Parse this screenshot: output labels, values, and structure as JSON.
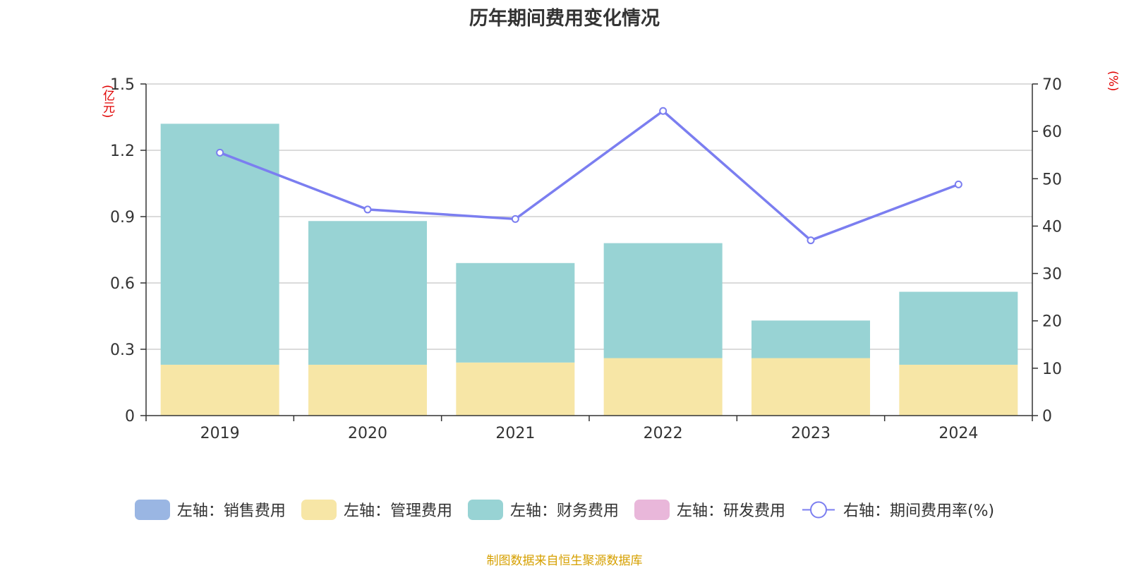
{
  "title": "历年期间费用变化情况",
  "unit_left": "(亿元)",
  "unit_right": "(%)",
  "source": "制图数据来自恒生聚源数据库",
  "legend": [
    {
      "label": "左轴：销售费用",
      "color": "#9ab6e3"
    },
    {
      "label": "左轴：管理费用",
      "color": "#f7e6a6"
    },
    {
      "label": "左轴：财务费用",
      "color": "#98d3d4"
    },
    {
      "label": "左轴：研发费用",
      "color": "#e9b7da"
    },
    {
      "label": "右轴：期间费用率(%)",
      "color": "#7b7ef0"
    }
  ],
  "chart_data": {
    "type": "bar",
    "stacked": true,
    "title": "历年期间费用变化情况",
    "categories": [
      "2019",
      "2020",
      "2021",
      "2022",
      "2023",
      "2024"
    ],
    "left_axis": {
      "unit": "(亿元)",
      "ylim": [
        0,
        1.5
      ],
      "ticks": [
        "0",
        "0.3",
        "0.6",
        "0.9",
        "1.2",
        "1.5"
      ]
    },
    "right_axis": {
      "unit": "(%)",
      "ylim": [
        0,
        70
      ],
      "ticks": [
        "0",
        "10",
        "20",
        "30",
        "40",
        "50",
        "60",
        "70"
      ]
    },
    "series": [
      {
        "name": "左轴：销售费用",
        "axis": "left",
        "type": "bar",
        "color": "#9ab6e3",
        "values": [
          0,
          0,
          0,
          0,
          0,
          0
        ]
      },
      {
        "name": "左轴：管理费用",
        "axis": "left",
        "type": "bar",
        "color": "#f7e6a6",
        "values": [
          0.23,
          0.23,
          0.24,
          0.26,
          0.26,
          0.23
        ]
      },
      {
        "name": "左轴：财务费用",
        "axis": "left",
        "type": "bar",
        "color": "#98d3d4",
        "values": [
          1.09,
          0.65,
          0.45,
          0.52,
          0.17,
          0.33
        ]
      },
      {
        "name": "左轴：研发费用",
        "axis": "left",
        "type": "bar",
        "color": "#e9b7da",
        "values": [
          0,
          0,
          0,
          0,
          0,
          0
        ]
      },
      {
        "name": "右轴：期间费用率(%)",
        "axis": "right",
        "type": "line",
        "color": "#7b7ef0",
        "values": [
          55.5,
          43.5,
          41.5,
          64.3,
          37.0,
          48.8
        ]
      }
    ],
    "grid": true,
    "legend_position": "bottom"
  }
}
